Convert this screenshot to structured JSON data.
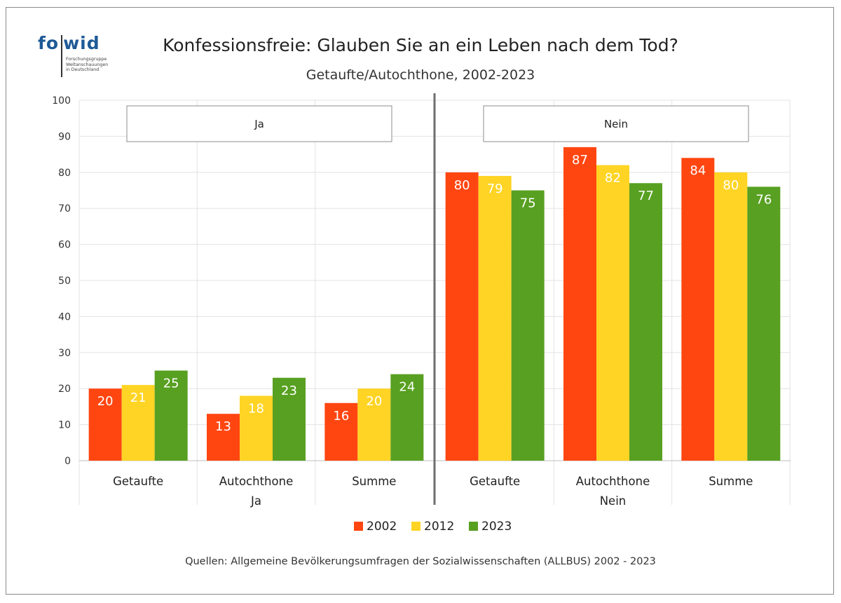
{
  "logo": {
    "word_a": "fo",
    "word_b": "wid",
    "subtitle": "Forschungsgruppe\nWeltanschauungen\nin Deutschland",
    "color": "#1e5a96"
  },
  "title": "Konfessionsfreie: Glauben Sie an ein Leben nach dem Tod?",
  "subtitle": "Getaufte/Autochthone, 2002-2023",
  "source": "Quellen: Allgemeine Bevölkerungsumfragen der Sozialwissenschaften (ALLBUS) 2002 - 2023",
  "chart_data": {
    "type": "bar",
    "ylim": [
      0,
      100
    ],
    "yticks": [
      "0",
      "10",
      "20",
      "30",
      "40",
      "50",
      "60",
      "70",
      "80",
      "90",
      "100"
    ],
    "grid": true,
    "legend_position": "bottom-center",
    "series": [
      {
        "name": "2002",
        "color": "#ff4611"
      },
      {
        "name": "2012",
        "color": "#ffd424"
      },
      {
        "name": "2023",
        "color": "#58a021"
      }
    ],
    "panels": [
      {
        "label": "Ja",
        "categories": [
          "Getaufte",
          "Autochthone",
          "Summe"
        ],
        "values": [
          [
            20,
            21,
            25
          ],
          [
            13,
            18,
            23
          ],
          [
            16,
            20,
            24
          ]
        ],
        "labels": [
          [
            "20",
            "21",
            "25"
          ],
          [
            "13",
            "18",
            "23"
          ],
          [
            "16",
            "20",
            "24"
          ]
        ]
      },
      {
        "label": "Nein",
        "categories": [
          "Getaufte",
          "Autochthone",
          "Summe"
        ],
        "values": [
          [
            80,
            79,
            75
          ],
          [
            87,
            82,
            77
          ],
          [
            84,
            80,
            76
          ]
        ],
        "labels": [
          [
            "80",
            "79",
            "75"
          ],
          [
            "87",
            "82",
            "77"
          ],
          [
            "84",
            "80",
            "76"
          ]
        ]
      }
    ]
  }
}
